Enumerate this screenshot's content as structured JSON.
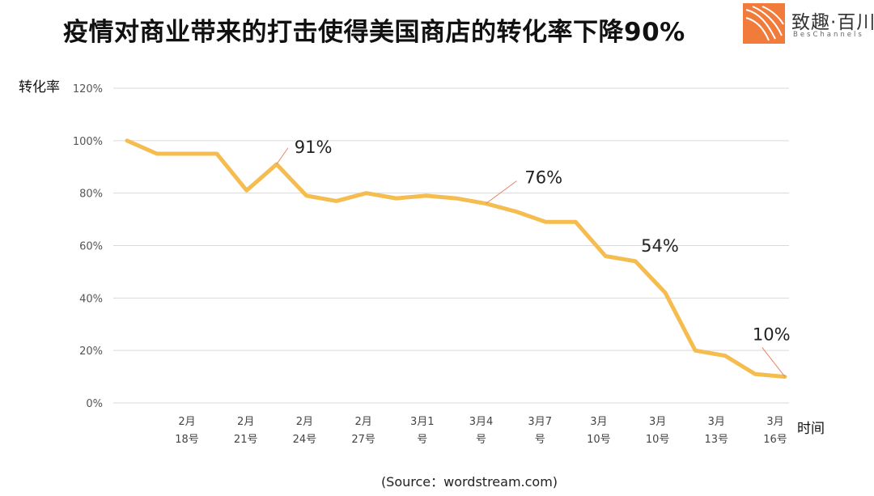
{
  "title": "疫情对商业带来的打击使得美国商店的转化率下降90%",
  "logo": {
    "name_cn": "致趣·百川",
    "name_en": "BesChannels",
    "colors": {
      "orange": "#f07b3a",
      "stroke": "#ffffff"
    }
  },
  "source": "(Source：wordstream.com)",
  "chart_data": {
    "type": "line",
    "title": "",
    "xlabel": "时间",
    "ylabel": "转化率",
    "ylim": [
      0,
      120
    ],
    "yticks": [
      0,
      20,
      40,
      60,
      80,
      100,
      120
    ],
    "ytick_labels": [
      "0%",
      "20%",
      "40%",
      "60%",
      "80%",
      "100%",
      "120%"
    ],
    "grid": true,
    "x_tick_labels": [
      [
        "2月",
        "18号"
      ],
      [
        "2月",
        "21号"
      ],
      [
        "2月",
        "24号"
      ],
      [
        "2月",
        "27号"
      ],
      [
        "3月1",
        "号"
      ],
      [
        "3月4",
        "号"
      ],
      [
        "3月7",
        "号"
      ],
      [
        "3月",
        "10号"
      ],
      [
        "3月",
        "10号"
      ],
      [
        "3月",
        "13号"
      ],
      [
        "3月",
        "16号"
      ]
    ],
    "series": [
      {
        "values": [
          100,
          95,
          95,
          95,
          81,
          91,
          79,
          77,
          80,
          78,
          79,
          78,
          76,
          73,
          69,
          69,
          56,
          54,
          42,
          20,
          18,
          11,
          10
        ]
      }
    ],
    "annotations": [
      {
        "text": "91%",
        "point_index": 5
      },
      {
        "text": "76%",
        "point_index": 12
      },
      {
        "text": "54%",
        "point_index": 17
      },
      {
        "text": "10%",
        "point_index": 22
      }
    ],
    "colors": {
      "line": "#f5bc4f",
      "grid": "#d9d9d9",
      "leader": "#e8826a"
    }
  }
}
